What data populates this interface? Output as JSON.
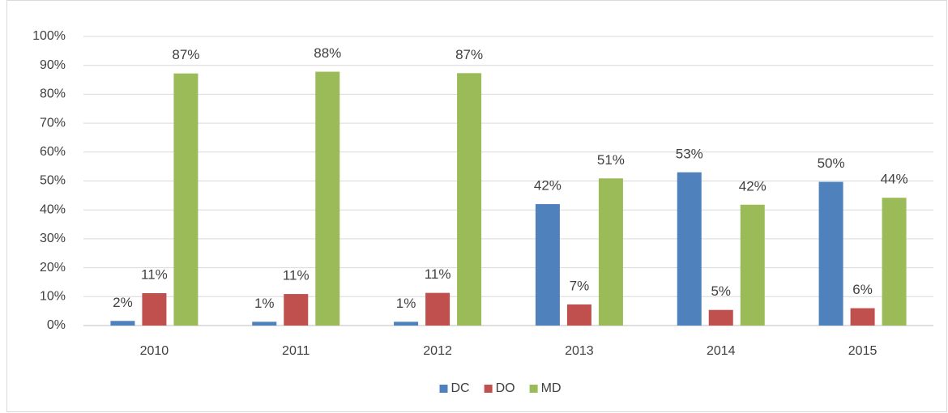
{
  "chart_data": {
    "type": "bar",
    "categories": [
      "2010",
      "2011",
      "2012",
      "2013",
      "2014",
      "2015"
    ],
    "series": [
      {
        "name": "DC",
        "color": "#4f81bd",
        "values": [
          1.6,
          1.3,
          1.3,
          42,
          53,
          49.7
        ],
        "value_labels": [
          "2%",
          "1%",
          "1%",
          "42%",
          "53%",
          "50%"
        ]
      },
      {
        "name": "DO",
        "color": "#c0504d",
        "values": [
          11.2,
          10.9,
          11.3,
          7.3,
          5.4,
          6.0
        ],
        "value_labels": [
          "11%",
          "11%",
          "11%",
          "7%",
          "5%",
          "6%"
        ]
      },
      {
        "name": "MD",
        "color": "#9bbb59",
        "values": [
          87.2,
          87.8,
          87.3,
          50.9,
          41.8,
          44.2
        ],
        "value_labels": [
          "87%",
          "88%",
          "87%",
          "51%",
          "42%",
          "44%"
        ]
      }
    ],
    "ylim": [
      0,
      100
    ],
    "yticks": [
      {
        "value": 0,
        "label": "0%"
      },
      {
        "value": 10,
        "label": "10%"
      },
      {
        "value": 20,
        "label": "20%"
      },
      {
        "value": 30,
        "label": "30%"
      },
      {
        "value": 40,
        "label": "40%"
      },
      {
        "value": 50,
        "label": "50%"
      },
      {
        "value": 60,
        "label": "60%"
      },
      {
        "value": 70,
        "label": "70%"
      },
      {
        "value": 80,
        "label": "80%"
      },
      {
        "value": 90,
        "label": "90%"
      },
      {
        "value": 100,
        "label": "100%"
      }
    ],
    "grid": true,
    "legend": "bottom"
  }
}
